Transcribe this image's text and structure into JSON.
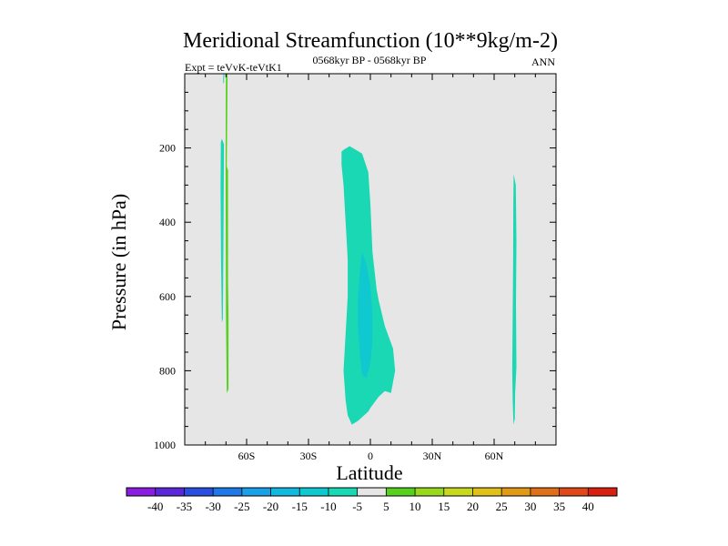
{
  "chart_data": {
    "type": "heatmap",
    "title": "Meridional Streamfunction (10**9kg/m-2)",
    "subtitle_left": "Expt = teVvK-teVtK1",
    "subtitle_center": "0568kyr BP - 0568kyr BP",
    "subtitle_right": "ANN",
    "xlabel": "Latitude",
    "ylabel": "Pressure (in hPa)",
    "x_ticks": [
      {
        "value": -60,
        "label": "60S"
      },
      {
        "value": -30,
        "label": "30S"
      },
      {
        "value": 0,
        "label": "0"
      },
      {
        "value": 30,
        "label": "30N"
      },
      {
        "value": 60,
        "label": "60N"
      }
    ],
    "y_ticks": [
      {
        "value": 200,
        "label": "200"
      },
      {
        "value": 400,
        "label": "400"
      },
      {
        "value": 600,
        "label": "600"
      },
      {
        "value": 800,
        "label": "800"
      },
      {
        "value": 1000,
        "label": "1000"
      }
    ],
    "xlim": [
      -90,
      90
    ],
    "ylim": [
      0,
      1000
    ],
    "y_inverted": true,
    "background_color": "#e6e6e6",
    "colorbar": {
      "levels": [
        "-40",
        "-35",
        "-30",
        "-25",
        "-20",
        "-15",
        "-10",
        "-5",
        "5",
        "10",
        "15",
        "20",
        "25",
        "30",
        "35",
        "40"
      ],
      "colors": [
        "#8a1ee0",
        "#5a28d8",
        "#2a4fe0",
        "#1f78e8",
        "#1aa0e8",
        "#12b8e0",
        "#10c8d0",
        "#1ad8b4",
        "#e6e6e6",
        "#58d01e",
        "#98d81e",
        "#c8d820",
        "#e0c01a",
        "#e09a18",
        "#e07018",
        "#e04818",
        "#d82010"
      ]
    },
    "regions": [
      {
        "name": "tropical cell outer",
        "value_band": "-10 to -5",
        "color": "#1ad8b4",
        "polygon": [
          [
            -13,
            205
          ],
          [
            -10,
            195
          ],
          [
            -4,
            215
          ],
          [
            -1,
            265
          ],
          [
            0,
            350
          ],
          [
            1,
            480
          ],
          [
            3,
            580
          ],
          [
            4,
            610
          ],
          [
            7,
            680
          ],
          [
            11,
            740
          ],
          [
            12,
            800
          ],
          [
            10,
            860
          ],
          [
            7,
            855
          ],
          [
            4,
            870
          ],
          [
            0,
            900
          ],
          [
            -1,
            910
          ],
          [
            -6,
            935
          ],
          [
            -9,
            945
          ],
          [
            -11,
            920
          ],
          [
            -12,
            880
          ],
          [
            -13,
            800
          ],
          [
            -12,
            700
          ],
          [
            -11,
            600
          ],
          [
            -11,
            500
          ],
          [
            -12,
            400
          ],
          [
            -13,
            300
          ],
          [
            -14,
            245
          ],
          [
            -14,
            210
          ]
        ]
      },
      {
        "name": "tropical cell core",
        "value_band": "-15 to -10",
        "color": "#10c8d0",
        "polygon": [
          [
            -4,
            480
          ],
          [
            -2,
            510
          ],
          [
            0,
            570
          ],
          [
            1,
            650
          ],
          [
            1,
            720
          ],
          [
            0,
            780
          ],
          [
            -2,
            820
          ],
          [
            -4,
            810
          ],
          [
            -5,
            760
          ],
          [
            -6,
            680
          ],
          [
            -6,
            600
          ],
          [
            -5,
            530
          ]
        ]
      },
      {
        "name": "southern high-latitude strip",
        "value_band": "-10 to -5",
        "color": "#1ad8b4",
        "polygon": [
          [
            -72,
            175
          ],
          [
            -71,
            190
          ],
          [
            -71.2,
            420
          ],
          [
            -71.5,
            660
          ],
          [
            -72,
            670
          ],
          [
            -72.4,
            500
          ],
          [
            -72.6,
            300
          ],
          [
            -72.5,
            185
          ]
        ]
      },
      {
        "name": "southern high-latitude positive",
        "value_band": "5 to 10",
        "color": "#58d01e",
        "polygon": [
          [
            -70,
            0
          ],
          [
            -69.2,
            0
          ],
          [
            -69.4,
            120
          ],
          [
            -69.6,
            250
          ],
          [
            -69.0,
            260
          ],
          [
            -69.0,
            560
          ],
          [
            -68.8,
            650
          ],
          [
            -68.8,
            850
          ],
          [
            -69.6,
            860
          ],
          [
            -70.0,
            650
          ],
          [
            -70.2,
            250
          ],
          [
            -70.1,
            60
          ]
        ]
      },
      {
        "name": "southern edge sliver",
        "value_band": "-10 to -5",
        "color": "#1ad8b4",
        "polygon": [
          [
            -71.3,
            0
          ],
          [
            -70.8,
            0
          ],
          [
            -71.0,
            25
          ],
          [
            -71.4,
            25
          ]
        ]
      },
      {
        "name": "northern high-latitude strip",
        "value_band": "-10 to -5",
        "color": "#1ad8b4",
        "polygon": [
          [
            69.5,
            270
          ],
          [
            70.5,
            300
          ],
          [
            70.8,
            450
          ],
          [
            70.6,
            620
          ],
          [
            70.8,
            790
          ],
          [
            70.2,
            860
          ],
          [
            70.0,
            930
          ],
          [
            69.4,
            945
          ],
          [
            69.0,
            880
          ],
          [
            68.8,
            800
          ],
          [
            69.0,
            650
          ],
          [
            69.2,
            500
          ],
          [
            69.3,
            350
          ]
        ]
      }
    ]
  }
}
